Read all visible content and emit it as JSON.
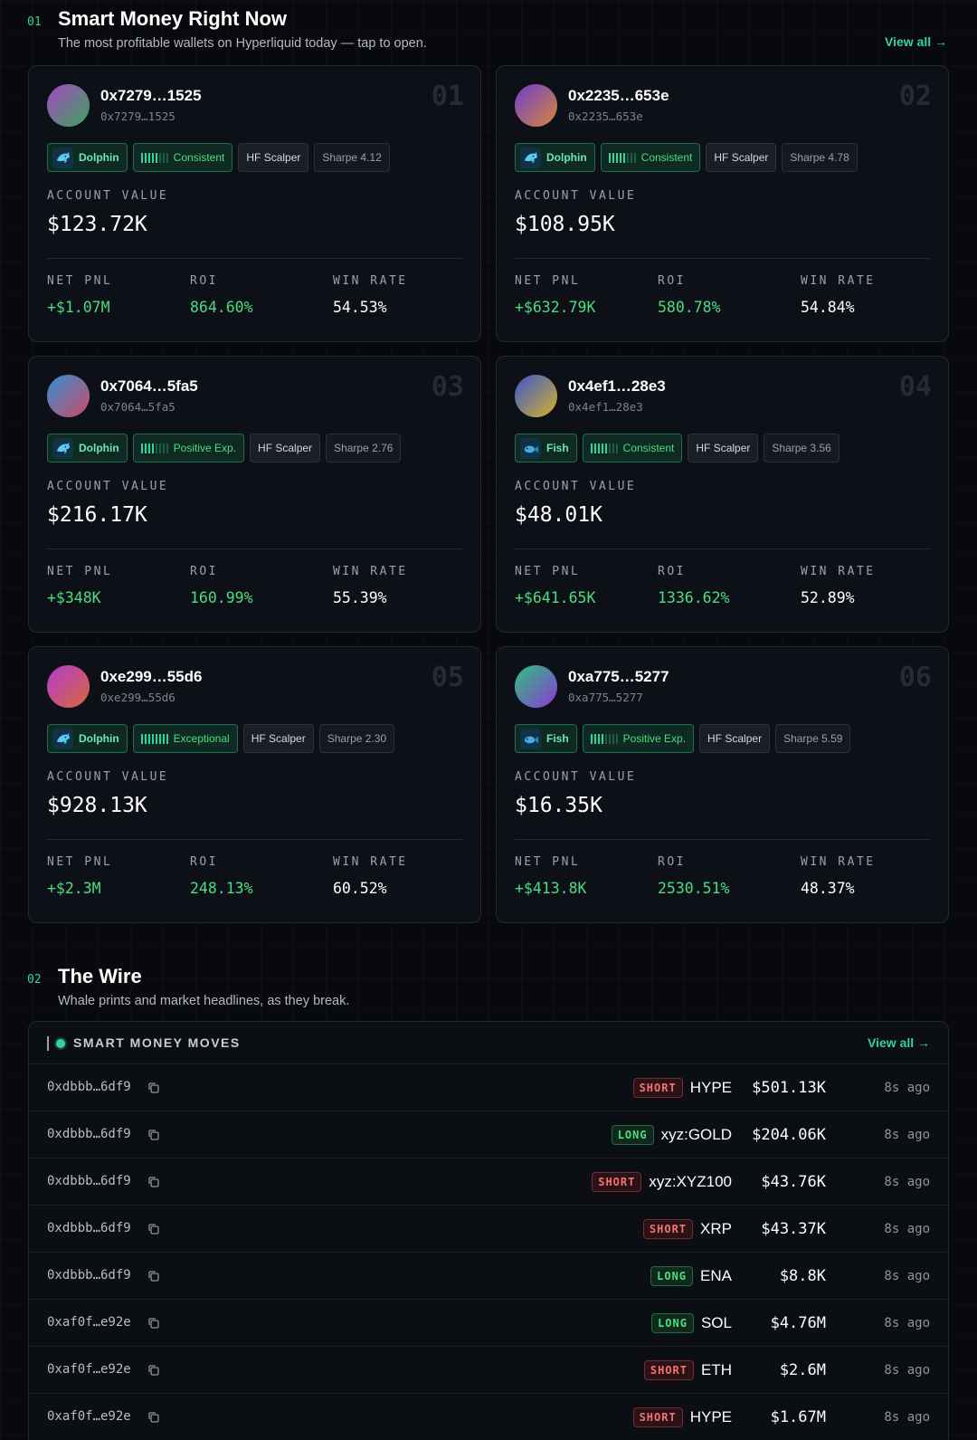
{
  "smart_money": {
    "number": "01",
    "title": "Smart Money Right Now",
    "subtitle": "The most profitable wallets on Hyperliquid today — tap to open.",
    "view_all": "View all →",
    "labels": {
      "account_value": "ACCOUNT VALUE",
      "net_pnl": "NET PNL",
      "roi": "ROI",
      "win_rate": "WIN RATE"
    },
    "wallets": [
      {
        "rank": "01",
        "address": "0x7279…1525",
        "address_sub": "0x7279…1525",
        "tier": "Dolphin",
        "tier_icon": "dolphin-icon",
        "consistency": "Consistent",
        "consistency_level": 5,
        "style": "HF Scalper",
        "sharpe": "Sharpe 4.12",
        "account_value": "$123.72K",
        "net_pnl": "+$1.07M",
        "roi": "864.60%",
        "win_rate": "54.53%",
        "avatar_from": "#a646c4",
        "avatar_to": "#3aa55a"
      },
      {
        "rank": "02",
        "address": "0x2235…653e",
        "address_sub": "0x2235…653e",
        "tier": "Dolphin",
        "tier_icon": "dolphin-icon",
        "consistency": "Consistent",
        "consistency_level": 5,
        "style": "HF Scalper",
        "sharpe": "Sharpe 4.78",
        "account_value": "$108.95K",
        "net_pnl": "+$632.79K",
        "roi": "580.78%",
        "win_rate": "54.84%",
        "avatar_from": "#6b3fd0",
        "avatar_to": "#d8843a"
      },
      {
        "rank": "03",
        "address": "0x7064…5fa5",
        "address_sub": "0x7064…5fa5",
        "tier": "Dolphin",
        "tier_icon": "dolphin-icon",
        "consistency": "Positive Exp.",
        "consistency_level": 4,
        "style": "HF Scalper",
        "sharpe": "Sharpe 2.76",
        "account_value": "$216.17K",
        "net_pnl": "+$348K",
        "roi": "160.99%",
        "win_rate": "55.39%",
        "avatar_from": "#2f8fd0",
        "avatar_to": "#d04a6a"
      },
      {
        "rank": "04",
        "address": "0x4ef1…28e3",
        "address_sub": "0x4ef1…28e3",
        "tier": "Fish",
        "tier_icon": "fish-icon",
        "consistency": "Consistent",
        "consistency_level": 5,
        "style": "HF Scalper",
        "sharpe": "Sharpe 3.56",
        "account_value": "$48.01K",
        "net_pnl": "+$641.65K",
        "roi": "1336.62%",
        "win_rate": "52.89%",
        "avatar_from": "#3a55d0",
        "avatar_to": "#d4b32a"
      },
      {
        "rank": "05",
        "address": "0xe299…55d6",
        "address_sub": "0xe299…55d6",
        "tier": "Dolphin",
        "tier_icon": "dolphin-icon",
        "consistency": "Exceptional",
        "consistency_level": 8,
        "style": "HF Scalper",
        "sharpe": "Sharpe 2.30",
        "account_value": "$928.13K",
        "net_pnl": "+$2.3M",
        "roi": "248.13%",
        "win_rate": "60.52%",
        "avatar_from": "#b23ad0",
        "avatar_to": "#d8683a"
      },
      {
        "rank": "06",
        "address": "0xa775…5277",
        "address_sub": "0xa775…5277",
        "tier": "Fish",
        "tier_icon": "fish-icon",
        "consistency": "Positive Exp.",
        "consistency_level": 4,
        "style": "HF Scalper",
        "sharpe": "Sharpe 5.59",
        "account_value": "$16.35K",
        "net_pnl": "+$413.8K",
        "roi": "2530.51%",
        "win_rate": "48.37%",
        "avatar_from": "#2fc07a",
        "avatar_to": "#8a3ad8"
      }
    ]
  },
  "wire": {
    "number": "02",
    "title": "The Wire",
    "subtitle": "Whale prints and market headlines, as they break.",
    "panel_title": "SMART MONEY MOVES",
    "view_all": "View all →",
    "moves": [
      {
        "address": "0xdbbb…6df9",
        "side": "SHORT",
        "asset": "HYPE",
        "amount": "$501.13K",
        "ago": "8s ago"
      },
      {
        "address": "0xdbbb…6df9",
        "side": "LONG",
        "asset": "xyz:GOLD",
        "amount": "$204.06K",
        "ago": "8s ago"
      },
      {
        "address": "0xdbbb…6df9",
        "side": "SHORT",
        "asset": "xyz:XYZ100",
        "amount": "$43.76K",
        "ago": "8s ago"
      },
      {
        "address": "0xdbbb…6df9",
        "side": "SHORT",
        "asset": "XRP",
        "amount": "$43.37K",
        "ago": "8s ago"
      },
      {
        "address": "0xdbbb…6df9",
        "side": "LONG",
        "asset": "ENA",
        "amount": "$8.8K",
        "ago": "8s ago"
      },
      {
        "address": "0xaf0f…e92e",
        "side": "LONG",
        "asset": "SOL",
        "amount": "$4.76M",
        "ago": "8s ago"
      },
      {
        "address": "0xaf0f…e92e",
        "side": "SHORT",
        "asset": "ETH",
        "amount": "$2.6M",
        "ago": "8s ago"
      },
      {
        "address": "0xaf0f…e92e",
        "side": "SHORT",
        "asset": "HYPE",
        "amount": "$1.67M",
        "ago": "8s ago"
      }
    ]
  }
}
